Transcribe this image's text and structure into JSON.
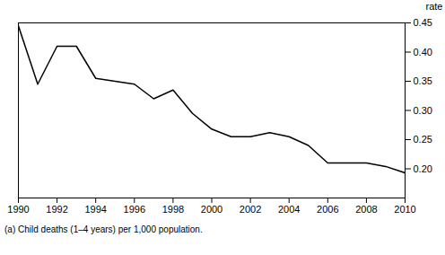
{
  "chart_data": {
    "type": "line",
    "x": [
      1990,
      1991,
      1992,
      1993,
      1994,
      1995,
      1996,
      1997,
      1998,
      1999,
      2000,
      2001,
      2002,
      2003,
      2004,
      2005,
      2006,
      2007,
      2008,
      2009,
      2010
    ],
    "values": [
      0.445,
      0.345,
      0.41,
      0.41,
      0.355,
      0.35,
      0.345,
      0.32,
      0.335,
      0.295,
      0.268,
      0.255,
      0.255,
      0.262,
      0.255,
      0.24,
      0.21,
      0.21,
      0.21,
      0.204,
      0.193
    ],
    "color": "#000000",
    "xlim": [
      1990,
      2010
    ],
    "xticks": [
      1990,
      1992,
      1994,
      1996,
      1998,
      2000,
      2002,
      2004,
      2006,
      2008,
      2010
    ],
    "ylim": [
      0.15,
      0.45
    ],
    "yticks": [
      {
        "value": 0.2,
        "label": "0.20"
      },
      {
        "value": 0.25,
        "label": "0.25"
      },
      {
        "value": 0.3,
        "label": "0.30"
      },
      {
        "value": 0.35,
        "label": "0.35"
      },
      {
        "value": 0.4,
        "label": "0.40"
      },
      {
        "value": 0.45,
        "label": "0.45"
      }
    ],
    "ylabel": "rate",
    "caption": "(a) Child deaths (1–4 years) per 1,000 population.",
    "grid": false
  }
}
